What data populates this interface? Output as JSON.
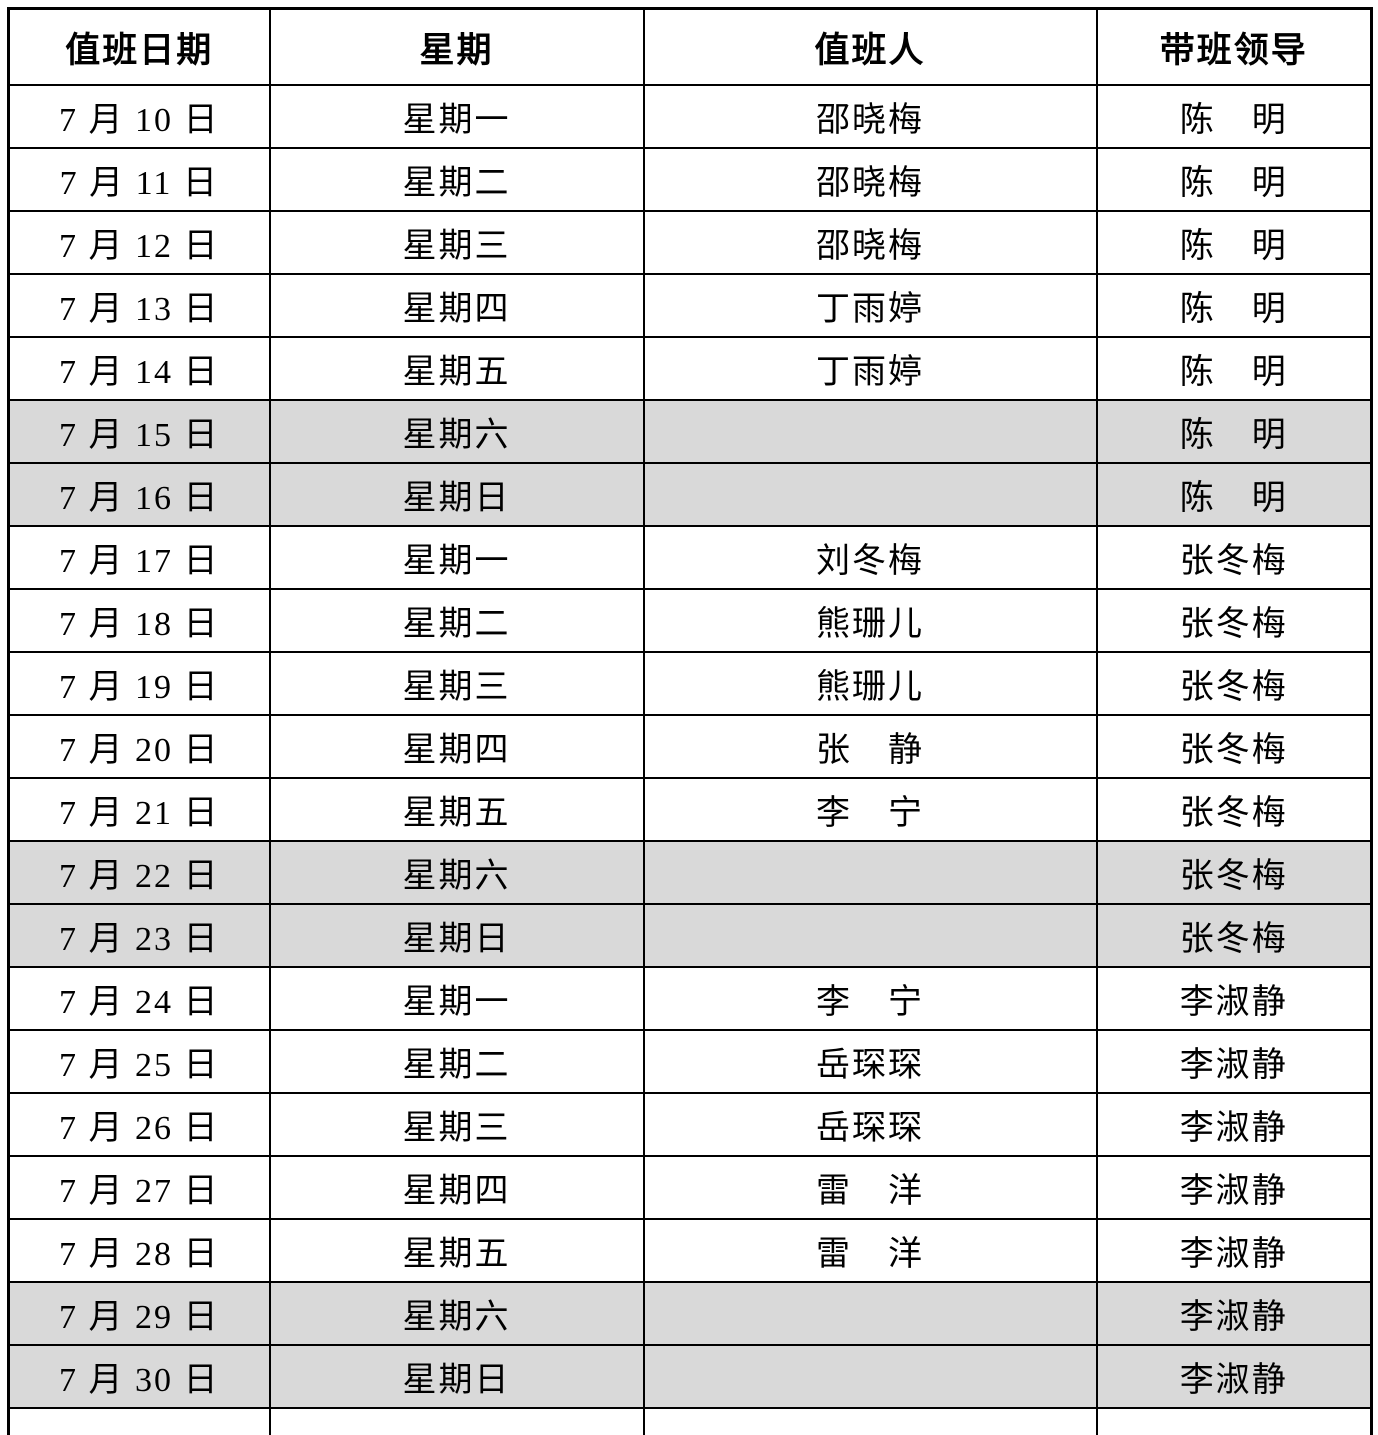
{
  "page": {
    "background": "#ffffff"
  },
  "table": {
    "border_color": "#000000",
    "weekend_row_bg": "#d9d9d9",
    "columns": [
      {
        "key": "date",
        "label": "值班日期"
      },
      {
        "key": "weekday",
        "label": "星期"
      },
      {
        "key": "person",
        "label": "值班人"
      },
      {
        "key": "leader",
        "label": "带班领导"
      }
    ],
    "rows": [
      {
        "date": "7 月 10 日",
        "weekday": "星期一",
        "person": "邵晓梅",
        "leader": "陈　明",
        "weekend": false
      },
      {
        "date": "7 月 11 日",
        "weekday": "星期二",
        "person": "邵晓梅",
        "leader": "陈　明",
        "weekend": false
      },
      {
        "date": "7 月 12 日",
        "weekday": "星期三",
        "person": "邵晓梅",
        "leader": "陈　明",
        "weekend": false
      },
      {
        "date": "7 月 13 日",
        "weekday": "星期四",
        "person": "丁雨婷",
        "leader": "陈　明",
        "weekend": false
      },
      {
        "date": "7 月 14 日",
        "weekday": "星期五",
        "person": "丁雨婷",
        "leader": "陈　明",
        "weekend": false
      },
      {
        "date": "7 月 15 日",
        "weekday": "星期六",
        "person": "",
        "leader": "陈　明",
        "weekend": true
      },
      {
        "date": "7 月 16 日",
        "weekday": "星期日",
        "person": "",
        "leader": "陈　明",
        "weekend": true
      },
      {
        "date": "7 月 17 日",
        "weekday": "星期一",
        "person": "刘冬梅",
        "leader": "张冬梅",
        "weekend": false
      },
      {
        "date": "7 月 18 日",
        "weekday": "星期二",
        "person": "熊珊儿",
        "leader": "张冬梅",
        "weekend": false
      },
      {
        "date": "7 月 19 日",
        "weekday": "星期三",
        "person": "熊珊儿",
        "leader": "张冬梅",
        "weekend": false
      },
      {
        "date": "7 月 20 日",
        "weekday": "星期四",
        "person": "张　静",
        "leader": "张冬梅",
        "weekend": false
      },
      {
        "date": "7 月 21 日",
        "weekday": "星期五",
        "person": "李　宁",
        "leader": "张冬梅",
        "weekend": false
      },
      {
        "date": "7 月 22 日",
        "weekday": "星期六",
        "person": "",
        "leader": "张冬梅",
        "weekend": true
      },
      {
        "date": "7 月 23 日",
        "weekday": "星期日",
        "person": "",
        "leader": "张冬梅",
        "weekend": true
      },
      {
        "date": "7 月 24 日",
        "weekday": "星期一",
        "person": "李　宁",
        "leader": "李淑静",
        "weekend": false
      },
      {
        "date": "7 月 25 日",
        "weekday": "星期二",
        "person": "岳琛琛",
        "leader": "李淑静",
        "weekend": false
      },
      {
        "date": "7 月 26 日",
        "weekday": "星期三",
        "person": "岳琛琛",
        "leader": "李淑静",
        "weekend": false
      },
      {
        "date": "7 月 27 日",
        "weekday": "星期四",
        "person": "雷　洋",
        "leader": "李淑静",
        "weekend": false
      },
      {
        "date": "7 月 28 日",
        "weekday": "星期五",
        "person": "雷　洋",
        "leader": "李淑静",
        "weekend": false
      },
      {
        "date": "7 月 29 日",
        "weekday": "星期六",
        "person": "",
        "leader": "李淑静",
        "weekend": true
      },
      {
        "date": "7 月 30 日",
        "weekday": "星期日",
        "person": "",
        "leader": "李淑静",
        "weekend": true
      },
      {
        "date": "",
        "weekday": "",
        "person": "",
        "leader": "",
        "weekend": false,
        "partial": true
      }
    ]
  }
}
